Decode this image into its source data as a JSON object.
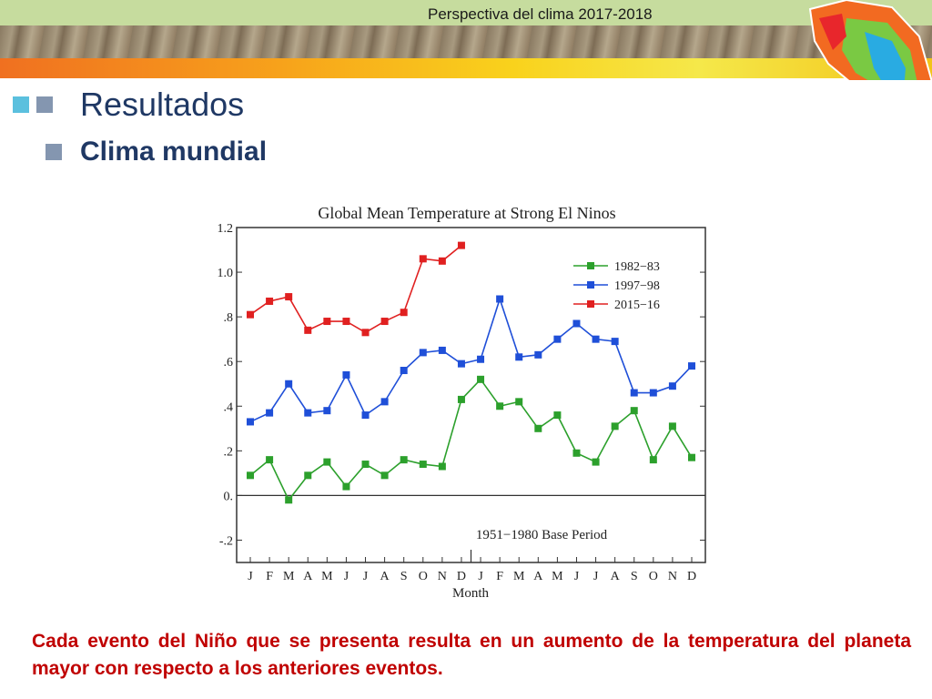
{
  "header": {
    "title": "Perspectiva del clima 2017-2018"
  },
  "slide": {
    "title": "Resultados",
    "subtitle": "Clima mundial"
  },
  "caption": "Cada evento del Niño que se presenta resulta en un aumento de la temperatura del planeta mayor con respecto a los anteriores eventos.",
  "colors": {
    "title": "#1f3864",
    "caption": "#c00000",
    "bullet_light": "#5bc0de",
    "bullet_gray": "#8496b0"
  },
  "chart_data": {
    "type": "line",
    "title": "Global Mean Temperature at Strong El Ninos",
    "xlabel": "Month",
    "ylabel": "",
    "annotation": "1951−1980 Base Period",
    "ylim": [
      -0.3,
      1.2
    ],
    "yticks": [
      "1.2",
      "1.0",
      ".8",
      ".6",
      ".4",
      ".2",
      "0.",
      "-.2"
    ],
    "ytick_values": [
      1.2,
      1.0,
      0.8,
      0.6,
      0.4,
      0.2,
      0.0,
      -0.2
    ],
    "categories": [
      "J",
      "F",
      "M",
      "A",
      "M",
      "J",
      "J",
      "A",
      "S",
      "O",
      "N",
      "D",
      "J",
      "F",
      "M",
      "A",
      "M",
      "J",
      "J",
      "A",
      "S",
      "O",
      "N",
      "D"
    ],
    "legend_position": "top-right",
    "grid": false,
    "series": [
      {
        "name": "1982−83",
        "color": "#2ca02c",
        "values": [
          0.09,
          0.16,
          -0.02,
          0.09,
          0.15,
          0.04,
          0.14,
          0.09,
          0.16,
          0.14,
          0.13,
          0.43,
          0.52,
          0.4,
          0.42,
          0.3,
          0.36,
          0.19,
          0.15,
          0.31,
          0.38,
          0.16,
          0.31,
          0.17
        ]
      },
      {
        "name": "1997−98",
        "color": "#1f4fd8",
        "values": [
          0.33,
          0.37,
          0.5,
          0.37,
          0.38,
          0.54,
          0.36,
          0.42,
          0.56,
          0.64,
          0.65,
          0.59,
          0.61,
          0.88,
          0.62,
          0.63,
          0.7,
          0.77,
          0.7,
          0.69,
          0.46,
          0.46,
          0.49,
          0.58
        ]
      },
      {
        "name": "2015−16",
        "color": "#e02020",
        "values": [
          0.81,
          0.87,
          0.89,
          0.74,
          0.78,
          0.78,
          0.73,
          0.78,
          0.82,
          1.06,
          1.05,
          1.12,
          null,
          null,
          null,
          null,
          null,
          null,
          null,
          null,
          null,
          null,
          null,
          null
        ]
      }
    ]
  }
}
